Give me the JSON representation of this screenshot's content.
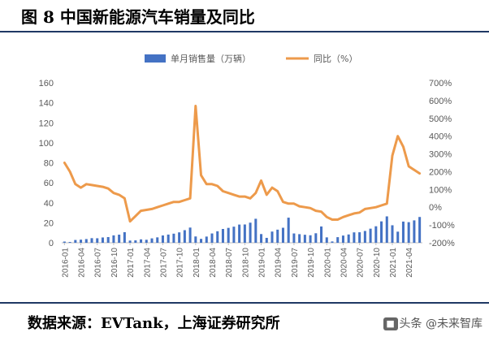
{
  "header": {
    "title": "图 8 中国新能源汽车销量及同比"
  },
  "footer": {
    "source": "数据来源：EVTank，上海证券研究所",
    "watermark": "头条 @未来智库"
  },
  "chart_data": {
    "type": "bar+line",
    "title": "",
    "xlabel": "",
    "ylabel": "",
    "legend_placement": "top",
    "colors": {
      "bar": "#4472c4",
      "line": "#ed9a4b"
    },
    "y_left": {
      "lim": [
        0,
        160
      ],
      "ticks": [
        0,
        20,
        40,
        60,
        80,
        100,
        120,
        140,
        160
      ]
    },
    "y_right": {
      "lim": [
        -200,
        700
      ],
      "ticks": [
        "-200%",
        "-100%",
        "0%",
        "100%",
        "200%",
        "300%",
        "400%",
        "500%",
        "600%",
        "700%"
      ],
      "tick_values": [
        -200,
        -100,
        0,
        100,
        200,
        300,
        400,
        500,
        600,
        700
      ]
    },
    "x_tick_labels": [
      "2016-01",
      "2016-04",
      "2016-07",
      "2016-10",
      "2017-01",
      "2017-04",
      "2017-07",
      "2017-10",
      "2018-01",
      "2018-04",
      "2018-07",
      "2018-10",
      "2019-01",
      "2019-04",
      "2019-07",
      "2019-10",
      "2020-01",
      "2020-04",
      "2020-07",
      "2020-10",
      "2021-01",
      "2021-04"
    ],
    "months": [
      "2016-01",
      "2016-02",
      "2016-03",
      "2016-04",
      "2016-05",
      "2016-06",
      "2016-07",
      "2016-08",
      "2016-09",
      "2016-10",
      "2016-11",
      "2016-12",
      "2017-01",
      "2017-02",
      "2017-03",
      "2017-04",
      "2017-05",
      "2017-06",
      "2017-07",
      "2017-08",
      "2017-09",
      "2017-10",
      "2017-11",
      "2017-12",
      "2018-01",
      "2018-02",
      "2018-03",
      "2018-04",
      "2018-05",
      "2018-06",
      "2018-07",
      "2018-08",
      "2018-09",
      "2018-10",
      "2018-11",
      "2018-12",
      "2019-01",
      "2019-02",
      "2019-03",
      "2019-04",
      "2019-05",
      "2019-06",
      "2019-07",
      "2019-08",
      "2019-09",
      "2019-10",
      "2019-11",
      "2019-12",
      "2020-01",
      "2020-02",
      "2020-03",
      "2020-04",
      "2020-05",
      "2020-06",
      "2020-07",
      "2020-08",
      "2020-09",
      "2020-10",
      "2020-11",
      "2020-12",
      "2021-01",
      "2021-02",
      "2021-03",
      "2021-04",
      "2021-05",
      "2021-06"
    ],
    "series": [
      {
        "name": "单月销售量（万辆）",
        "axis": "left",
        "type": "bar",
        "values": [
          1.2,
          0.8,
          2.8,
          3.1,
          3.7,
          4.6,
          4.5,
          5.3,
          5.7,
          7.4,
          8.1,
          10.6,
          2.2,
          2.4,
          3.4,
          3.0,
          4.4,
          5.4,
          7.3,
          8.2,
          9.1,
          10.4,
          12.6,
          15.2,
          6.3,
          3.9,
          6.2,
          9.3,
          11.5,
          13.8,
          14.9,
          16.1,
          18.2,
          18.3,
          20.1,
          24.0,
          8.7,
          4.9,
          11.2,
          13.1,
          15.0,
          25.1,
          9.3,
          8.6,
          8.0,
          7.5,
          9.5,
          16.3,
          5.4,
          1.3,
          5.6,
          7.2,
          8.3,
          10.4,
          10.5,
          11.8,
          14.1,
          16.5,
          21.4,
          26.4,
          17.5,
          11.1,
          21.2,
          20.6,
          22.4,
          25.8
        ]
      },
      {
        "name": "同比（%）",
        "axis": "right",
        "type": "line",
        "values": [
          250,
          200,
          130,
          110,
          130,
          125,
          120,
          115,
          105,
          80,
          70,
          50,
          -80,
          -50,
          -20,
          -15,
          -10,
          0,
          10,
          20,
          30,
          30,
          40,
          50,
          570,
          180,
          130,
          130,
          120,
          90,
          80,
          70,
          60,
          60,
          50,
          80,
          150,
          70,
          110,
          90,
          30,
          20,
          20,
          5,
          0,
          -5,
          -20,
          -25,
          -55,
          -70,
          -70,
          -55,
          -45,
          -35,
          -30,
          -10,
          -5,
          0,
          10,
          20,
          290,
          400,
          340,
          230,
          210,
          190
        ]
      }
    ]
  }
}
